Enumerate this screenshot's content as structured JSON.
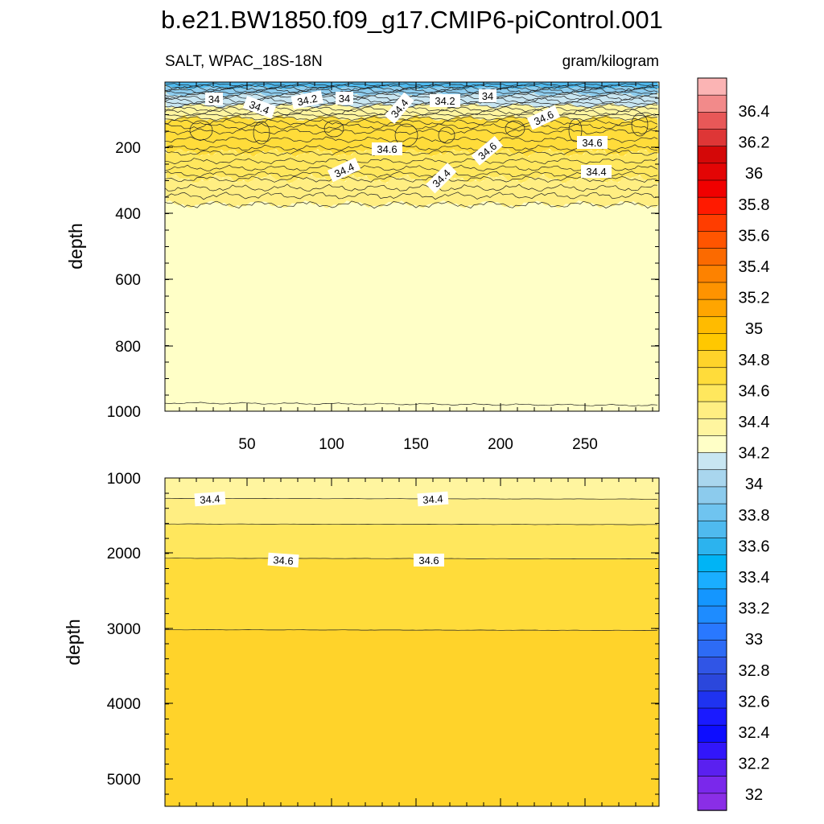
{
  "chart_data": [
    {
      "type": "heatmap",
      "title": "b.e21.BW1850.f09_g17.CMIP6-piControl.001",
      "left_string": "SALT, WPAC_18S-18N",
      "right_string": "gram/kilogram",
      "ylabel": "depth",
      "xlabel": "",
      "x_tick_labels": [
        "50",
        "100",
        "150",
        "200",
        "250"
      ],
      "y_tick_labels": [
        "200",
        "400",
        "600",
        "800",
        "1000"
      ],
      "xlim": [
        1,
        293
      ],
      "ylim": [
        1000,
        0
      ],
      "y_reversed": true,
      "grid": false,
      "contour_interval": 0.1,
      "contour_labels": [
        "34",
        "34.4",
        "34.2",
        "34",
        "34.4",
        "34.2",
        "34",
        "34.6",
        "34.6",
        "34.6",
        "34.6",
        "34.4",
        "34.4",
        "34.4"
      ],
      "bands": [
        {
          "salinity": "33.6-33.8",
          "depth": [
            5,
            20
          ]
        },
        {
          "salinity": "33.8-34.0",
          "depth": [
            15,
            40
          ]
        },
        {
          "salinity": "34.0-34.2",
          "depth": [
            30,
            75
          ]
        },
        {
          "salinity": "34.2-34.4",
          "depth": [
            60,
            120
          ]
        },
        {
          "salinity": "34.6-34.8",
          "depth": [
            110,
            220
          ]
        },
        {
          "salinity": "34.4-34.6",
          "depth": [
            220,
            300
          ]
        },
        {
          "salinity": "34.2-34.4",
          "depth": [
            300,
            380
          ]
        },
        {
          "salinity": "34.2",
          "depth": [
            380,
            1000
          ]
        }
      ]
    },
    {
      "type": "heatmap",
      "ylabel": "depth",
      "xlabel": "",
      "y_tick_labels": [
        "1000",
        "2000",
        "3000",
        "4000",
        "5000"
      ],
      "ylim": [
        5500,
        1000
      ],
      "y_reversed": true,
      "grid": false,
      "contour_labels": [
        "34.4",
        "34.4",
        "34.6",
        "34.6"
      ],
      "contour_depths": [
        1280,
        1630,
        2100,
        3080
      ],
      "bands": [
        {
          "salinity": "34.3-34.4",
          "depth": [
            1000,
            1280
          ]
        },
        {
          "salinity": "34.4-34.5",
          "depth": [
            1280,
            1630
          ]
        },
        {
          "salinity": "34.5-34.6",
          "depth": [
            1630,
            2100
          ]
        },
        {
          "salinity": "34.6-34.7",
          "depth": [
            2100,
            3080
          ]
        },
        {
          "salinity": "34.7-34.8",
          "depth": [
            3080,
            5500
          ]
        }
      ]
    }
  ],
  "colorbar": {
    "labels": [
      "36.4",
      "36.2",
      "36",
      "35.8",
      "35.6",
      "35.4",
      "35.2",
      "35",
      "34.8",
      "34.6",
      "34.4",
      "34.2",
      "34",
      "33.8",
      "33.6",
      "33.4",
      "33.2",
      "33",
      "32.8",
      "32.6",
      "32.4",
      "32.2",
      "32"
    ],
    "colors": [
      "#fbb4b4",
      "#f28a8a",
      "#e85858",
      "#de3636",
      "#d40808",
      "#e30505",
      "#f00000",
      "#ff1a00",
      "#ff3d00",
      "#ff5500",
      "#fb6a00",
      "#fd8200",
      "#fe9300",
      "#ffa500",
      "#ffbb00",
      "#ffc800",
      "#ffd32a",
      "#ffdc3a",
      "#ffe75d",
      "#ffee82",
      "#fff59f",
      "#ffffc7",
      "#c8e6f2",
      "#a9d6ee",
      "#8ccbed",
      "#6fc4f0",
      "#4fbaef",
      "#2cb3ee",
      "#00b4f5",
      "#1aaeff",
      "#1496ff",
      "#1e8cff",
      "#2978ff",
      "#2d6bf5",
      "#3055e6",
      "#2b47dc",
      "#1f33f0",
      "#1a1aff",
      "#0d0dff",
      "#3216fa",
      "#5a20f0",
      "#7a28eb",
      "#8a2ee6"
    ]
  }
}
